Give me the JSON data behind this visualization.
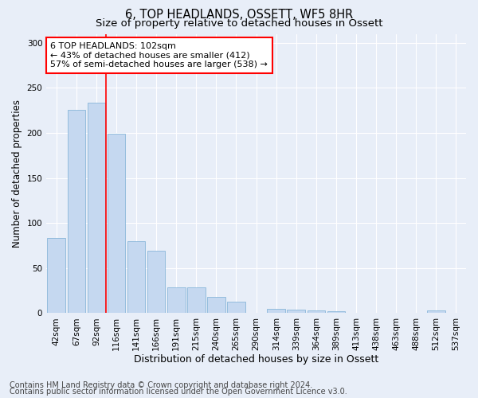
{
  "title": "6, TOP HEADLANDS, OSSETT, WF5 8HR",
  "subtitle": "Size of property relative to detached houses in Ossett",
  "xlabel": "Distribution of detached houses by size in Ossett",
  "ylabel": "Number of detached properties",
  "categories": [
    "42sqm",
    "67sqm",
    "92sqm",
    "116sqm",
    "141sqm",
    "166sqm",
    "191sqm",
    "215sqm",
    "240sqm",
    "265sqm",
    "290sqm",
    "314sqm",
    "339sqm",
    "364sqm",
    "389sqm",
    "413sqm",
    "438sqm",
    "463sqm",
    "488sqm",
    "512sqm",
    "537sqm"
  ],
  "values": [
    83,
    226,
    234,
    199,
    80,
    69,
    29,
    29,
    18,
    13,
    0,
    5,
    4,
    3,
    2,
    0,
    0,
    0,
    0,
    3,
    0
  ],
  "bar_color": "#c5d8f0",
  "bar_edge_color": "#7aadd4",
  "vline_color": "red",
  "vline_x": 2.5,
  "annotation_text": "6 TOP HEADLANDS: 102sqm\n← 43% of detached houses are smaller (412)\n57% of semi-detached houses are larger (538) →",
  "annotation_box_facecolor": "white",
  "annotation_box_edgecolor": "red",
  "footer_line1": "Contains HM Land Registry data © Crown copyright and database right 2024.",
  "footer_line2": "Contains public sector information licensed under the Open Government Licence v3.0.",
  "ylim": [
    0,
    310
  ],
  "background_color": "#e8eef8",
  "grid_color": "white",
  "title_fontsize": 10.5,
  "subtitle_fontsize": 9.5,
  "ylabel_fontsize": 8.5,
  "xlabel_fontsize": 9,
  "tick_fontsize": 7.5,
  "annotation_fontsize": 8,
  "footer_fontsize": 7
}
